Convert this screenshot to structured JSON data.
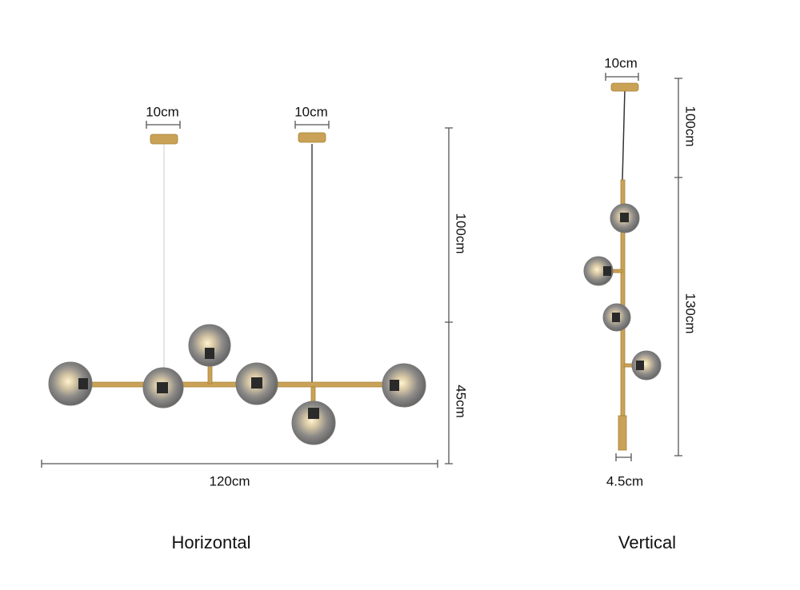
{
  "horizontal": {
    "caption": "Horizontal",
    "dimensions": {
      "canopy_left": "10cm",
      "canopy_right": "10cm",
      "cable_drop": "100cm",
      "body_height": "45cm",
      "overall_width": "120cm"
    }
  },
  "vertical": {
    "caption": "Vertical",
    "dimensions": {
      "canopy": "10cm",
      "cable_drop": "100cm",
      "body_height": "130cm",
      "tube_width": "4.5cm"
    }
  }
}
